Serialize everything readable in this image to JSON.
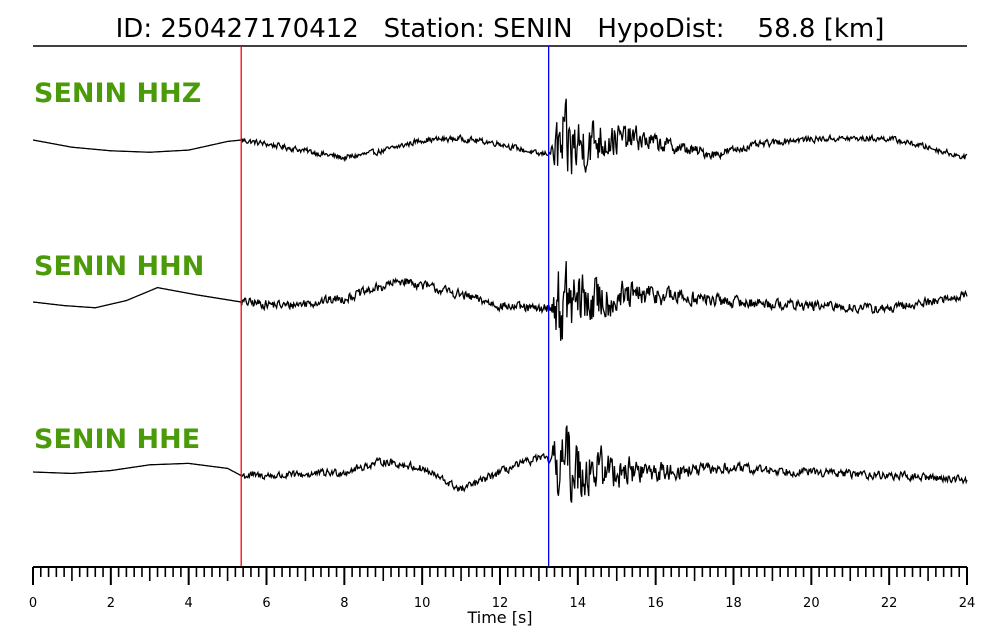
{
  "header": {
    "title": "ID: 250427170412   Station: SENIN   HypoDist:    58.8 [km]"
  },
  "chart_data": {
    "type": "line",
    "title": "ID: 250427170412   Station: SENIN   HypoDist:    58.8 [km]",
    "xlabel": "Time [s]",
    "xlim": [
      0,
      24
    ],
    "x_ticks": [
      0,
      2,
      4,
      6,
      8,
      10,
      12,
      14,
      16,
      18,
      20,
      22,
      24
    ],
    "minor_tick_step": 0.2,
    "grid": false,
    "markers": [
      {
        "time": 5.35,
        "color": "#ff0000"
      },
      {
        "time": 13.25,
        "color": "#0000ff"
      }
    ],
    "trace_color": "#000000",
    "label_color": "#4a9a0a",
    "series": [
      {
        "name": "SENIN HHZ",
        "onset_time": 13.3,
        "pre_event": [
          [
            0,
            0.0
          ],
          [
            1,
            -0.1
          ],
          [
            2,
            -0.15
          ],
          [
            3,
            -0.17
          ],
          [
            4,
            -0.14
          ],
          [
            5,
            -0.02
          ],
          [
            5.35,
            0.0
          ]
        ],
        "coda": [
          [
            5.35,
            0.0
          ],
          [
            6.5,
            -0.1
          ],
          [
            8,
            -0.25
          ],
          [
            9,
            -0.15
          ],
          [
            10,
            0.0
          ],
          [
            11,
            0.02
          ],
          [
            12,
            -0.05
          ],
          [
            13,
            -0.2
          ],
          [
            13.6,
            -0.15
          ],
          [
            14.5,
            0.0
          ],
          [
            15.5,
            0.02
          ],
          [
            16.5,
            -0.1
          ],
          [
            17.5,
            -0.2
          ],
          [
            18.5,
            -0.08
          ],
          [
            19.5,
            0.0
          ],
          [
            20.5,
            0.02
          ],
          [
            22,
            0.02
          ],
          [
            23,
            -0.1
          ],
          [
            24,
            -0.25
          ]
        ],
        "noise_amp": 0.055,
        "peak_amp": 0.95
      },
      {
        "name": "SENIN HHN",
        "onset_time": 13.3,
        "pre_event": [
          [
            0,
            0.0
          ],
          [
            0.8,
            -0.05
          ],
          [
            1.6,
            -0.08
          ],
          [
            2.4,
            0.02
          ],
          [
            3.2,
            0.2
          ],
          [
            4.2,
            0.1
          ],
          [
            5.35,
            0.0
          ]
        ],
        "coda": [
          [
            5.35,
            0.0
          ],
          [
            6.5,
            -0.05
          ],
          [
            8,
            0.05
          ],
          [
            9.5,
            0.3
          ],
          [
            11,
            0.1
          ],
          [
            12,
            -0.05
          ],
          [
            13,
            -0.1
          ],
          [
            14,
            0.0
          ],
          [
            16,
            0.1
          ],
          [
            18,
            0.0
          ],
          [
            20,
            -0.05
          ],
          [
            22,
            -0.1
          ],
          [
            24,
            0.1
          ]
        ],
        "noise_amp": 0.09,
        "peak_amp": 0.9
      },
      {
        "name": "SENIN HHE",
        "onset_time": 13.3,
        "pre_event": [
          [
            0,
            0.0
          ],
          [
            1,
            -0.02
          ],
          [
            2,
            0.02
          ],
          [
            3,
            0.1
          ],
          [
            4,
            0.12
          ],
          [
            5,
            0.05
          ],
          [
            5.35,
            -0.05
          ]
        ],
        "coda": [
          [
            5.35,
            -0.05
          ],
          [
            6.5,
            -0.05
          ],
          [
            8,
            0.0
          ],
          [
            9,
            0.15
          ],
          [
            10,
            0.05
          ],
          [
            11,
            -0.25
          ],
          [
            12,
            0.0
          ],
          [
            13,
            0.2
          ],
          [
            14,
            0.05
          ],
          [
            16,
            0.0
          ],
          [
            18,
            0.05
          ],
          [
            20,
            0.0
          ],
          [
            22,
            -0.05
          ],
          [
            24,
            -0.1
          ]
        ],
        "noise_amp": 0.075,
        "peak_amp": 0.95
      }
    ]
  }
}
